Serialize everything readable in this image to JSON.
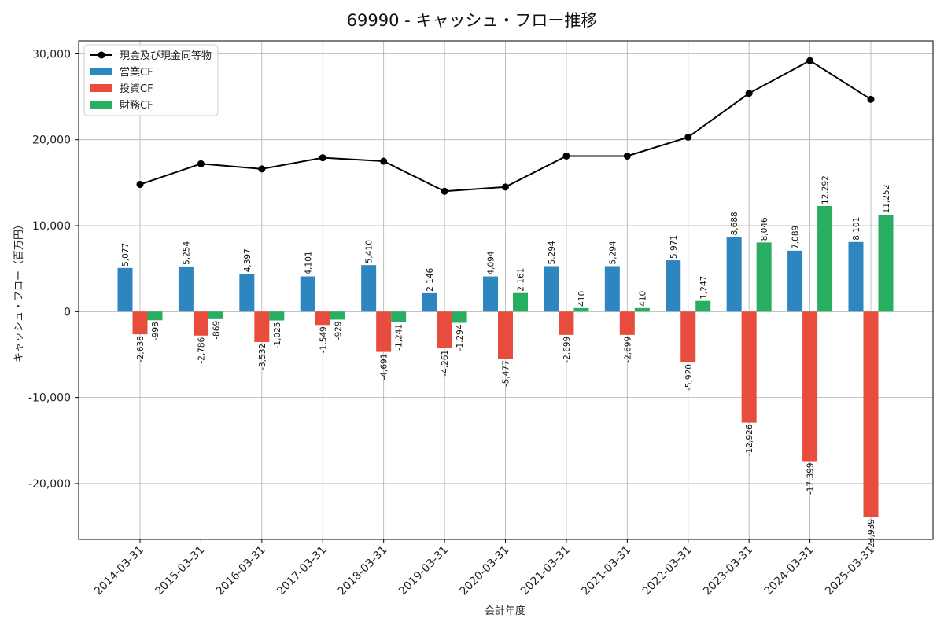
{
  "chart_data": {
    "type": "bar",
    "title": "69990 - キャッシュ・フロー推移",
    "xlabel": "会計年度",
    "ylabel": "キャッシュ・フロー（百万円）",
    "categories": [
      "2014-03-31",
      "2015-03-31",
      "2016-03-31",
      "2017-03-31",
      "2018-03-31",
      "2019-03-31",
      "2020-03-31",
      "2021-03-31",
      "2021-03-31",
      "2022-03-31",
      "2023-03-31",
      "2024-03-31",
      "2025-03-31"
    ],
    "series": [
      {
        "name": "営業CF",
        "kind": "bar",
        "color": "#2e86c1",
        "values": [
          5077,
          5254,
          4397,
          4101,
          5410,
          2146,
          4094,
          5294,
          5294,
          5971,
          8688,
          7089,
          8101
        ],
        "labels": [
          "5,077",
          "5,254",
          "4,397",
          "4,101",
          "5,410",
          "2,146",
          "4,094",
          "5,294",
          "5,294",
          "5,971",
          "8,688",
          "7,089",
          "8,101"
        ]
      },
      {
        "name": "投資CF",
        "kind": "bar",
        "color": "#e74c3c",
        "values": [
          -2638,
          -2786,
          -3532,
          -1549,
          -4691,
          -4261,
          -5477,
          -2699,
          -2699,
          -5920,
          -12926,
          -17399,
          -23939
        ],
        "labels": [
          "-2,638",
          "-2,786",
          "-3,532",
          "-1,549",
          "-4,691",
          "-4,261",
          "-5,477",
          "-2,699",
          "-2,699",
          "-5,920",
          "-12,926",
          "-17,399",
          "-23,939"
        ]
      },
      {
        "name": "財務CF",
        "kind": "bar",
        "color": "#27ae60",
        "values": [
          -998,
          -869,
          -1025,
          -929,
          -1241,
          -1294,
          2161,
          410,
          410,
          1247,
          8046,
          12292,
          11252
        ],
        "labels": [
          "-998",
          "-869",
          "-1,025",
          "-929",
          "-1,241",
          "-1,294",
          "2,161",
          "410",
          "410",
          "1,247",
          "8,046",
          "12,292",
          "11,252"
        ]
      },
      {
        "name": "現金及び現金同等物",
        "kind": "line",
        "color": "#000000",
        "values": [
          14800,
          17200,
          16600,
          17900,
          17500,
          14000,
          14500,
          18100,
          18100,
          20300,
          25400,
          29200,
          24700
        ]
      }
    ],
    "ylim": [
      -26500,
      31500
    ],
    "yticks": [
      -20000,
      -10000,
      0,
      10000,
      20000,
      30000
    ],
    "ytick_labels": [
      "-20,000",
      "-10,000",
      "0",
      "10,000",
      "20,000",
      "30,000"
    ],
    "grid": true,
    "legend_position": "top-left"
  }
}
